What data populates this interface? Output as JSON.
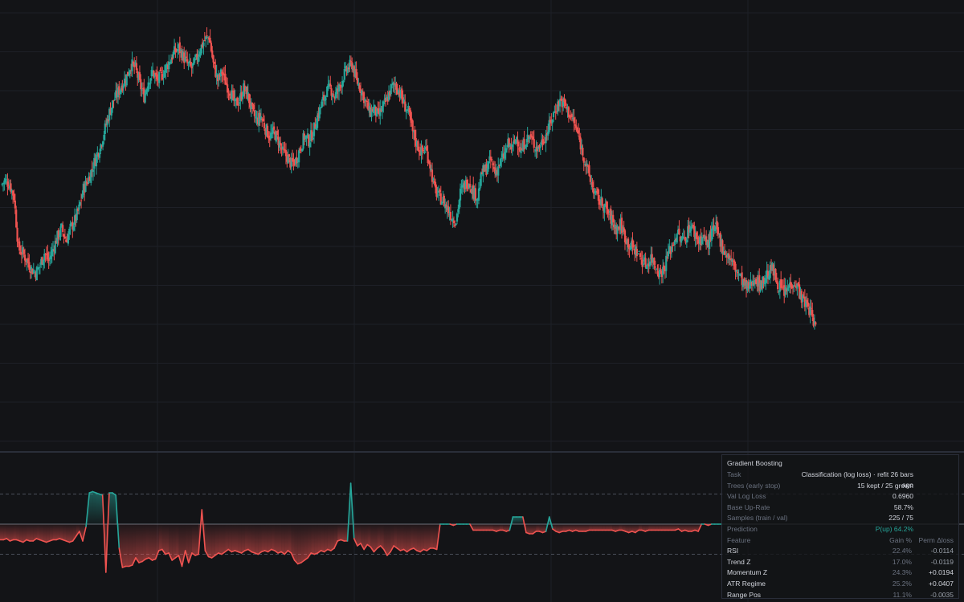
{
  "colors": {
    "background": "#131417",
    "grid": "#1e2027",
    "up": "#26a69a",
    "down": "#ef5350",
    "muted_text": "#6b7280",
    "text": "#d1d4dc"
  },
  "model_panel": {
    "title": "Gradient Boosting",
    "rows": [
      {
        "key": "Task",
        "value": "Classification (log loss) · refit 26 bars ago"
      },
      {
        "key": "Trees (early stop)",
        "value": "15 kept / 25 grown"
      },
      {
        "key": "Val Log Loss",
        "value": "0.6960"
      },
      {
        "key": "Base Up-Rate",
        "value": "58.7%"
      },
      {
        "key": "Samples (train / val)",
        "value": "225 / 75"
      }
    ],
    "prediction_label": "Prediction",
    "prediction_value": "P(up) 64.2%",
    "feature_headers": {
      "name": "Feature",
      "gain": "Gain %",
      "perm": "Perm Δloss"
    },
    "features": [
      {
        "name": "RSI",
        "gain": "22.4%",
        "perm": "-0.0114"
      },
      {
        "name": "Trend Z",
        "gain": "17.0%",
        "perm": "-0.0119"
      },
      {
        "name": "Momentum Z",
        "gain": "24.3%",
        "perm": "+0.0194"
      },
      {
        "name": "ATR Regime",
        "gain": "25.2%",
        "perm": "+0.0407"
      },
      {
        "name": "Range Pos",
        "gain": "11.1%",
        "perm": "-0.0035"
      }
    ]
  },
  "chart_data": [
    {
      "type": "candlestick",
      "ylim": [
        0,
        100
      ],
      "grid": true,
      "close": [
        62,
        63,
        62,
        59,
        46,
        45,
        43,
        41,
        40,
        42,
        45,
        43,
        46,
        49,
        51,
        48,
        51,
        53,
        56,
        61,
        63,
        66,
        69,
        72,
        76,
        80,
        83,
        85,
        87,
        89,
        92,
        91,
        87,
        84,
        88,
        90,
        88,
        89,
        91,
        93,
        95,
        96,
        94,
        92,
        91,
        93,
        96,
        98,
        99,
        92,
        88,
        90,
        87,
        85,
        82,
        83,
        86,
        84,
        80,
        78,
        79,
        76,
        74,
        75,
        73,
        70,
        69,
        67,
        68,
        71,
        74,
        73,
        75,
        79,
        82,
        85,
        86,
        84,
        86,
        89,
        91,
        92,
        88,
        86,
        83,
        80,
        81,
        79,
        81,
        83,
        86,
        87,
        85,
        82,
        80,
        75,
        72,
        70,
        71,
        67,
        61,
        59,
        58,
        56,
        54,
        53,
        60,
        62,
        63,
        60,
        59,
        65,
        66,
        68,
        65,
        67,
        69,
        72,
        71,
        74,
        70,
        73,
        74,
        72,
        71,
        73,
        75,
        78,
        81,
        83,
        82,
        80,
        78,
        75,
        71,
        67,
        63,
        60,
        58,
        57,
        55,
        53,
        51,
        52,
        49,
        47,
        46,
        45,
        43,
        42,
        44,
        42,
        40,
        41,
        45,
        47,
        50,
        48,
        49,
        52,
        50,
        48,
        49,
        47,
        50,
        51,
        48,
        45,
        44,
        42,
        40,
        38,
        36,
        37,
        39,
        37,
        38,
        40,
        41,
        38,
        36,
        35,
        37,
        38,
        36,
        33,
        32,
        30,
        26
      ],
      "highs_lows_note": "",
      "series": []
    },
    {
      "type": "line",
      "ylim": [
        0,
        1
      ],
      "reference_levels": [
        0.25,
        0.5,
        0.75
      ],
      "values": [
        0.37,
        0.37,
        0.38,
        0.36,
        0.37,
        0.37,
        0.36,
        0.35,
        0.37,
        0.36,
        0.36,
        0.38,
        0.37,
        0.36,
        0.35,
        0.36,
        0.37,
        0.37,
        0.38,
        0.37,
        0.36,
        0.35,
        0.36,
        0.4,
        0.44,
        0.36,
        0.48,
        0.76,
        0.77,
        0.76,
        0.75,
        0.74,
        0.1,
        0.76,
        0.76,
        0.74,
        0.3,
        0.14,
        0.15,
        0.15,
        0.16,
        0.22,
        0.18,
        0.19,
        0.21,
        0.22,
        0.2,
        0.21,
        0.28,
        0.29,
        0.25,
        0.26,
        0.2,
        0.22,
        0.24,
        0.15,
        0.28,
        0.18,
        0.26,
        0.24,
        0.25,
        0.62,
        0.28,
        0.23,
        0.22,
        0.24,
        0.26,
        0.25,
        0.27,
        0.29,
        0.27,
        0.28,
        0.27,
        0.26,
        0.28,
        0.29,
        0.27,
        0.26,
        0.25,
        0.27,
        0.28,
        0.27,
        0.29,
        0.28,
        0.26,
        0.27,
        0.25,
        0.28,
        0.26,
        0.2,
        0.17,
        0.18,
        0.2,
        0.22,
        0.26,
        0.25,
        0.26,
        0.28,
        0.27,
        0.29,
        0.28,
        0.3,
        0.36,
        0.37,
        0.36,
        0.36,
        0.84,
        0.38,
        0.32,
        0.34,
        0.29,
        0.33,
        0.31,
        0.27,
        0.3,
        0.32,
        0.29,
        0.24,
        0.27,
        0.32,
        0.3,
        0.28,
        0.29,
        0.27,
        0.29,
        0.3,
        0.28,
        0.27,
        0.29,
        0.28,
        0.3,
        0.3,
        0.29,
        0.5,
        0.5,
        0.5,
        0.5,
        0.49,
        0.5,
        0.5,
        0.5,
        0.5,
        0.5,
        0.45,
        0.45,
        0.45,
        0.45,
        0.45,
        0.45,
        0.45,
        0.44,
        0.45,
        0.45,
        0.44,
        0.45,
        0.56,
        0.56,
        0.56,
        0.56,
        0.43,
        0.42,
        0.42,
        0.44,
        0.44,
        0.43,
        0.44,
        0.56,
        0.46,
        0.44,
        0.43,
        0.44,
        0.44,
        0.45,
        0.44,
        0.45,
        0.44,
        0.44,
        0.44,
        0.45,
        0.45,
        0.45,
        0.45,
        0.45,
        0.45,
        0.45,
        0.45,
        0.44,
        0.45,
        0.45,
        0.44,
        0.43,
        0.44,
        0.43,
        0.45,
        0.45,
        0.44,
        0.45,
        0.45,
        0.45,
        0.45,
        0.45,
        0.45,
        0.45,
        0.45,
        0.45,
        0.46,
        0.44,
        0.45,
        0.44,
        0.44,
        0.45,
        0.44,
        0.5,
        0.5,
        0.49,
        0.5,
        0.5,
        0.5,
        0.5
      ]
    }
  ]
}
